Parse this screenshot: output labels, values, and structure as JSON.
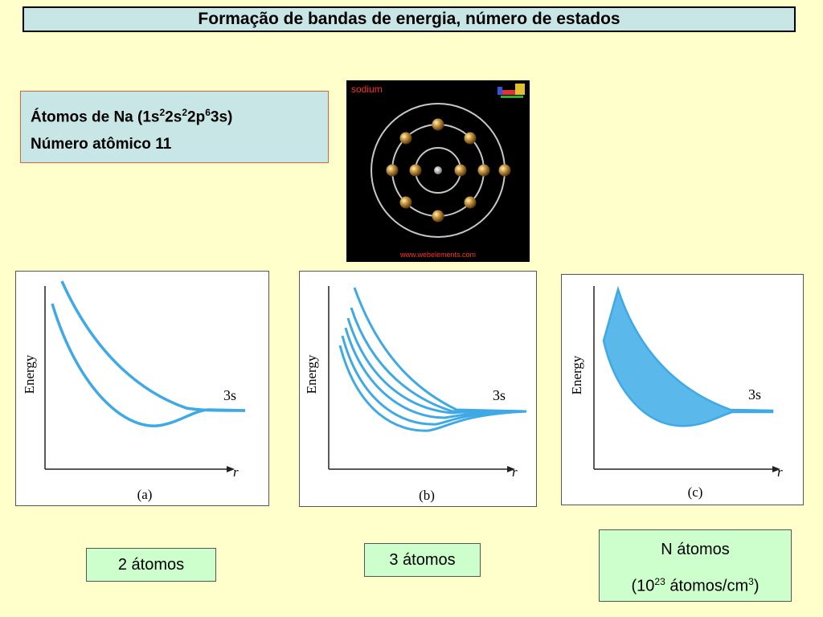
{
  "title": "Formação de bandas de energia, número de estados",
  "info": {
    "line1_prefix": "Átomos de Na (1s",
    "sup1": "2",
    "mid1": "2s",
    "sup2": "2",
    "mid2": "2p",
    "sup3": "6",
    "line1_suffix": "3s)",
    "line2": "Número atômico 11"
  },
  "atom_image": {
    "label": "sodium",
    "url_text": "www.webelements.com",
    "shells": [
      2,
      8,
      1
    ],
    "colors": {
      "background": "#000000",
      "label": "#ff3030",
      "electron": "#c8963c",
      "orbit": "#b0b0b0"
    }
  },
  "diagrams": [
    {
      "ylabel": "Energy",
      "xlabel": "r",
      "level": "3s",
      "caption": "(a)",
      "curves": 2,
      "filled": false
    },
    {
      "ylabel": "Energy",
      "xlabel": "r",
      "level": "3s",
      "caption": "(b)",
      "curves": 6,
      "filled": false
    },
    {
      "ylabel": "Energy",
      "xlabel": "r",
      "level": "3s",
      "caption": "(c)",
      "curves": 0,
      "filled": true
    }
  ],
  "labels": {
    "a": "2 átomos",
    "b": "3 átomos",
    "c_line1": "N átomos",
    "c_line2_prefix": "(10",
    "c_line2_sup": "23",
    "c_line2_mid": " átomos/cm",
    "c_line2_sup2": "3",
    "c_line2_suffix": ")"
  },
  "colors": {
    "curve": "#3fa9e6",
    "fill": "#5ab8ea",
    "background": "#ffffcc",
    "title_bg": "#c8e6e6",
    "label_bg": "#ccffcc"
  }
}
